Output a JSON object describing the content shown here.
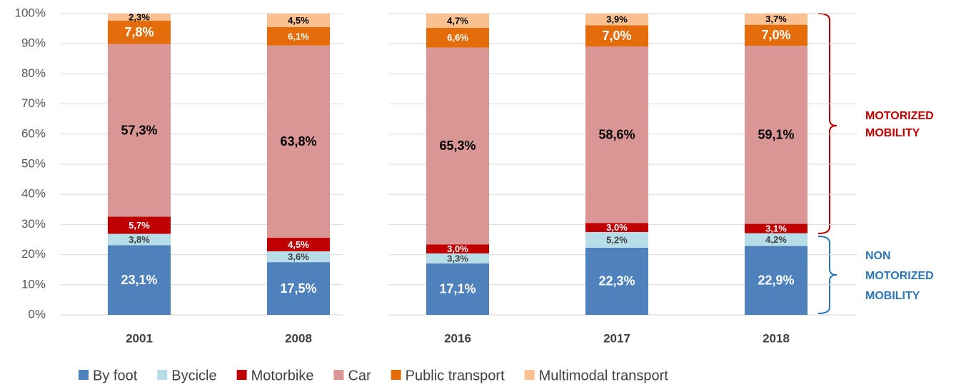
{
  "chart_data": {
    "type": "stacked_bar",
    "categories": [
      "2001",
      "2008",
      "2016",
      "2017",
      "2018"
    ],
    "series": [
      {
        "name": "By foot",
        "color": "#4f81bd",
        "label_color": "#ffffff",
        "values": [
          23.1,
          17.5,
          17.1,
          22.3,
          22.9
        ],
        "value_labels": [
          "23,1%",
          "17,5%",
          "17,1%",
          "22,3%",
          "22,9%"
        ]
      },
      {
        "name": "Bycicle",
        "color": "#b7dde8",
        "label_color": "#404040",
        "values": [
          3.8,
          3.6,
          3.3,
          5.2,
          4.2
        ],
        "value_labels": [
          "3,8%",
          "3,6%",
          "3,3%",
          "5,2%",
          "4,2%"
        ]
      },
      {
        "name": "Motorbike",
        "color": "#c00000",
        "label_color": "#ffffff",
        "values": [
          5.7,
          4.5,
          3.0,
          3.0,
          3.1
        ],
        "value_labels": [
          "5,7%",
          "4,5%",
          "3,0%",
          "3,0%",
          "3,1%"
        ]
      },
      {
        "name": "Car",
        "color": "#d99694",
        "label_color": "#000000",
        "values": [
          57.3,
          63.8,
          65.3,
          58.6,
          59.1
        ],
        "value_labels": [
          "57,3%",
          "63,8%",
          "65,3%",
          "58,6%",
          "59,1%"
        ]
      },
      {
        "name": "Public transport",
        "color": "#e46c0a",
        "label_color": "#ffffff",
        "values": [
          7.8,
          6.1,
          6.6,
          7.0,
          7.0
        ],
        "value_labels": [
          "7,8%",
          "6,1%",
          "6,6%",
          "7,0%",
          "7,0%"
        ]
      },
      {
        "name": "Multimodal transport",
        "color": "#fac08f",
        "label_color": "#000000",
        "values": [
          2.3,
          4.5,
          4.7,
          3.9,
          3.7
        ],
        "value_labels": [
          "2,3%",
          "4,5%",
          "4,7%",
          "3,9%",
          "3,7%"
        ]
      }
    ],
    "ylim": [
      0,
      100
    ],
    "yticks": [
      {
        "value": 0,
        "label": "0%"
      },
      {
        "value": 10,
        "label": "10%"
      },
      {
        "value": 20,
        "label": "20%"
      },
      {
        "value": 30,
        "label": "30%"
      },
      {
        "value": 40,
        "label": "40%"
      },
      {
        "value": 50,
        "label": "50%"
      },
      {
        "value": 60,
        "label": "60%"
      },
      {
        "value": 70,
        "label": "70%"
      },
      {
        "value": 80,
        "label": "80%"
      },
      {
        "value": 90,
        "label": "90%"
      },
      {
        "value": 100,
        "label": "100%"
      }
    ],
    "grid": true,
    "legend": "bottom",
    "annotations": [
      {
        "lines": [
          "MOTORIZED",
          "MOBILITY"
        ],
        "color": "#c00000"
      },
      {
        "lines": [
          "NON",
          "MOTORIZED",
          "MOBILITY"
        ],
        "color": "#2e75b6"
      }
    ]
  }
}
